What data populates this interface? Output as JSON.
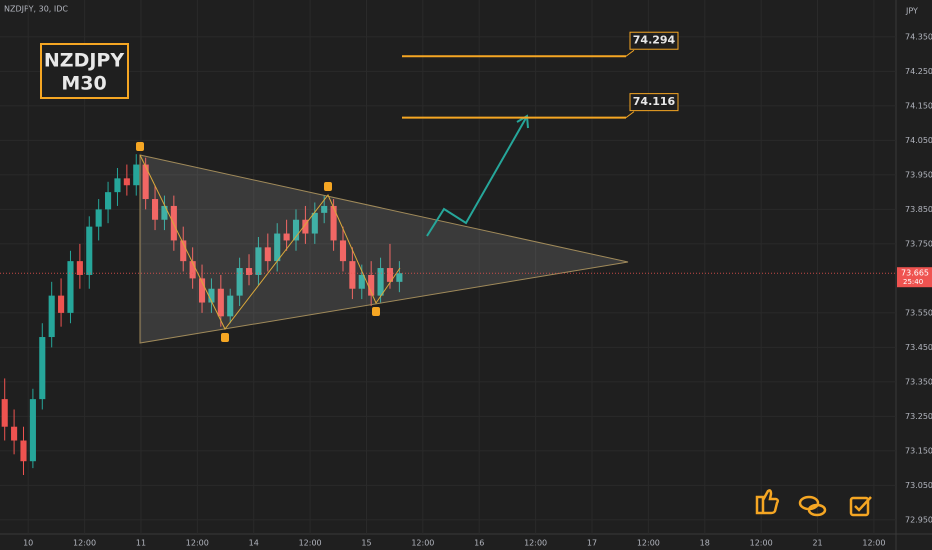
{
  "chart_data": {
    "type": "candlestick",
    "title": "NZDJPY, 30, IDC",
    "symbol": "NZDJPY",
    "timeframe": "M30",
    "currency": "JPY",
    "x": [
      -5,
      -3,
      -1,
      1,
      3,
      5,
      7,
      9,
      11,
      13,
      15,
      17,
      19,
      21,
      23,
      25,
      27,
      29,
      31,
      33,
      35,
      37,
      39,
      41,
      43,
      45,
      47,
      49,
      51,
      53,
      55,
      57,
      59,
      61,
      63,
      65,
      67,
      69,
      71,
      73,
      75,
      77,
      79
    ],
    "open": [
      73.3,
      73.22,
      73.18,
      73.12,
      73.3,
      73.48,
      73.6,
      73.55,
      73.7,
      73.66,
      73.8,
      73.85,
      73.9,
      73.94,
      73.92,
      73.98,
      73.88,
      73.82,
      73.86,
      73.76,
      73.7,
      73.65,
      73.58,
      73.62,
      73.54,
      73.6,
      73.68,
      73.66,
      73.74,
      73.7,
      73.78,
      73.76,
      73.82,
      73.78,
      73.84,
      73.86,
      73.76,
      73.7,
      73.62,
      73.66,
      73.6,
      73.68,
      73.64
    ],
    "high": [
      73.36,
      73.27,
      73.22,
      73.33,
      73.52,
      73.64,
      73.65,
      73.73,
      73.75,
      73.83,
      73.88,
      73.93,
      73.97,
      73.98,
      74.01,
      74.0,
      73.92,
      73.89,
      73.89,
      73.8,
      73.74,
      73.69,
      73.65,
      73.66,
      73.62,
      73.71,
      73.72,
      73.77,
      73.78,
      73.81,
      73.82,
      73.85,
      73.86,
      73.87,
      73.89,
      73.88,
      73.8,
      73.74,
      73.69,
      73.7,
      73.71,
      73.75,
      73.7
    ],
    "low": [
      73.18,
      73.14,
      73.08,
      73.1,
      73.27,
      73.45,
      73.51,
      73.52,
      73.62,
      73.62,
      73.76,
      73.81,
      73.86,
      73.89,
      73.89,
      73.85,
      73.79,
      73.79,
      73.73,
      73.67,
      73.62,
      73.55,
      73.55,
      73.51,
      73.52,
      73.57,
      73.63,
      73.63,
      73.67,
      73.67,
      73.73,
      73.73,
      73.75,
      73.75,
      73.81,
      73.73,
      73.67,
      73.59,
      73.59,
      73.57,
      73.58,
      73.62,
      73.61
    ],
    "close": [
      73.22,
      73.18,
      73.12,
      73.3,
      73.48,
      73.6,
      73.55,
      73.7,
      73.66,
      73.8,
      73.85,
      73.9,
      73.94,
      73.92,
      73.98,
      73.88,
      73.82,
      73.86,
      73.76,
      73.7,
      73.65,
      73.58,
      73.62,
      73.54,
      73.6,
      73.68,
      73.66,
      73.74,
      73.7,
      73.78,
      73.76,
      73.82,
      73.78,
      73.84,
      73.86,
      73.76,
      73.7,
      73.62,
      73.66,
      73.6,
      73.68,
      73.64,
      73.665
    ],
    "up_color": "#26a69a",
    "down_color": "#ef5350",
    "xlim": [
      -6,
      184.7
    ],
    "xticks": [
      {
        "value": 0,
        "label": "10"
      },
      {
        "value": 12,
        "label": "12:00"
      },
      {
        "value": 24,
        "label": "11"
      },
      {
        "value": 36,
        "label": "12:00"
      },
      {
        "value": 48,
        "label": "14"
      },
      {
        "value": 60,
        "label": "12:00"
      },
      {
        "value": 72,
        "label": "15"
      },
      {
        "value": 84,
        "label": "12:00"
      },
      {
        "value": 96,
        "label": "16"
      },
      {
        "value": 108,
        "label": "12:00"
      },
      {
        "value": 120,
        "label": "17"
      },
      {
        "value": 132,
        "label": "12:00"
      },
      {
        "value": 144,
        "label": "18"
      },
      {
        "value": 156,
        "label": "12:00"
      },
      {
        "value": 168,
        "label": "21"
      },
      {
        "value": 180,
        "label": "12:00"
      }
    ],
    "ylim": [
      72.909,
      74.457
    ],
    "yticks": [
      {
        "value": 74.35,
        "label": "74.350"
      },
      {
        "value": 74.25,
        "label": "74.250"
      },
      {
        "value": 74.15,
        "label": "74.150"
      },
      {
        "value": 74.05,
        "label": "74.050"
      },
      {
        "value": 73.95,
        "label": "73.950"
      },
      {
        "value": 73.85,
        "label": "73.850"
      },
      {
        "value": 73.75,
        "label": "73.750"
      },
      {
        "value": 73.55,
        "label": "73.550"
      },
      {
        "value": 73.45,
        "label": "73.450"
      },
      {
        "value": 73.35,
        "label": "73.350"
      },
      {
        "value": 73.25,
        "label": "73.250"
      },
      {
        "value": 73.15,
        "label": "73.150"
      },
      {
        "value": 73.05,
        "label": "73.050"
      },
      {
        "value": 72.95,
        "label": "72.950"
      }
    ],
    "levels": [
      {
        "value": 74.294,
        "label": "74.294"
      },
      {
        "value": 74.116,
        "label": "74.116"
      }
    ],
    "level_color": "#f5a623",
    "current_price": {
      "value": 73.665,
      "label": "73.665"
    },
    "countdown": "25:40"
  }
}
